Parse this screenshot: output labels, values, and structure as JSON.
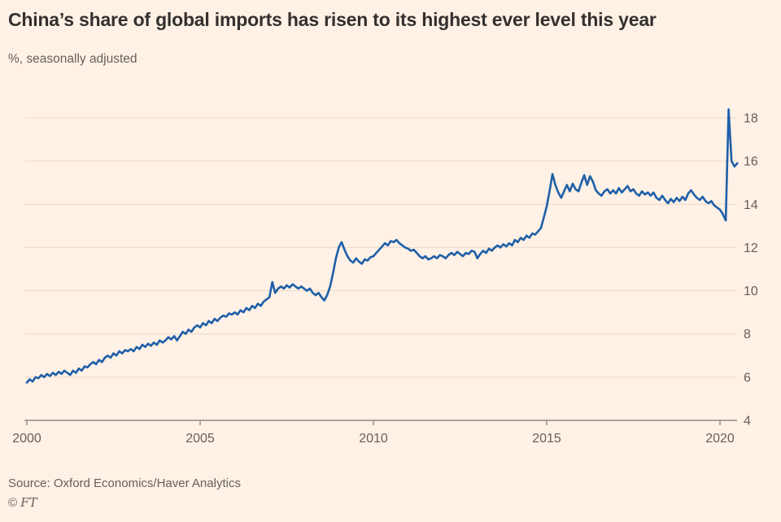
{
  "page": {
    "title": "China’s share of global imports has risen to its highest ever level this year",
    "subtitle": "%, seasonally adjusted",
    "source": "Source: Oxford Economics/Haver Analytics",
    "copyright_symbol": "©",
    "copyright_brand": "FT"
  },
  "colors": {
    "background": "#fff1e5",
    "line": "#1e5fa8",
    "grid": "#e9d9c7",
    "axis": "#8f8a86",
    "text_primary": "#33302e",
    "text_secondary": "#66605c"
  },
  "chart_data": {
    "type": "line",
    "title": "China’s share of global imports has risen to its highest ever level this year",
    "subtitle": "%, seasonally adjusted",
    "xlabel": "",
    "ylabel": "%, seasonally adjusted",
    "x_ticks": [
      2000,
      2005,
      2010,
      2015,
      2020
    ],
    "y_ticks": [
      4,
      6,
      8,
      10,
      12,
      14,
      16,
      18
    ],
    "xlim": [
      2000,
      2020.58
    ],
    "ylim": [
      4,
      18.8
    ],
    "grid": true,
    "legend_position": "none",
    "line_color": "#1e5fa8",
    "frequency": "monthly",
    "start": "2000-01",
    "end": "2020-07",
    "series": [
      {
        "name": "China share of global imports (%)",
        "values": [
          5.75,
          5.9,
          5.8,
          6.0,
          5.95,
          6.1,
          6.0,
          6.15,
          6.05,
          6.2,
          6.1,
          6.25,
          6.15,
          6.3,
          6.2,
          6.1,
          6.3,
          6.2,
          6.4,
          6.3,
          6.5,
          6.45,
          6.6,
          6.7,
          6.6,
          6.8,
          6.7,
          6.9,
          7.0,
          6.9,
          7.1,
          7.0,
          7.2,
          7.1,
          7.25,
          7.2,
          7.3,
          7.2,
          7.4,
          7.3,
          7.5,
          7.4,
          7.55,
          7.45,
          7.6,
          7.5,
          7.7,
          7.6,
          7.7,
          7.85,
          7.75,
          7.9,
          7.7,
          7.9,
          8.1,
          8.0,
          8.2,
          8.1,
          8.3,
          8.4,
          8.3,
          8.5,
          8.4,
          8.6,
          8.5,
          8.7,
          8.6,
          8.75,
          8.85,
          8.8,
          8.95,
          8.9,
          9.0,
          8.9,
          9.1,
          9.0,
          9.2,
          9.1,
          9.3,
          9.2,
          9.4,
          9.3,
          9.5,
          9.6,
          9.7,
          10.4,
          9.9,
          10.1,
          10.2,
          10.1,
          10.25,
          10.15,
          10.3,
          10.2,
          10.1,
          10.2,
          10.1,
          10.0,
          10.1,
          9.9,
          9.8,
          9.9,
          9.7,
          9.55,
          9.8,
          10.2,
          10.8,
          11.5,
          12.0,
          12.25,
          11.9,
          11.6,
          11.4,
          11.3,
          11.5,
          11.35,
          11.25,
          11.45,
          11.4,
          11.55,
          11.6,
          11.75,
          11.9,
          12.05,
          12.2,
          12.1,
          12.3,
          12.25,
          12.35,
          12.2,
          12.1,
          12.0,
          11.95,
          11.85,
          11.9,
          11.75,
          11.6,
          11.5,
          11.6,
          11.45,
          11.5,
          11.6,
          11.5,
          11.65,
          11.6,
          11.5,
          11.65,
          11.75,
          11.65,
          11.8,
          11.7,
          11.6,
          11.75,
          11.7,
          11.85,
          11.8,
          11.5,
          11.7,
          11.85,
          11.75,
          11.95,
          11.85,
          12.0,
          12.1,
          12.0,
          12.15,
          12.05,
          12.2,
          12.1,
          12.35,
          12.25,
          12.45,
          12.35,
          12.55,
          12.45,
          12.65,
          12.6,
          12.75,
          12.9,
          13.4,
          13.9,
          14.6,
          15.4,
          14.9,
          14.55,
          14.3,
          14.6,
          14.9,
          14.6,
          14.95,
          14.7,
          14.6,
          15.0,
          15.35,
          14.9,
          15.3,
          15.05,
          14.65,
          14.5,
          14.4,
          14.6,
          14.7,
          14.5,
          14.65,
          14.5,
          14.75,
          14.55,
          14.7,
          14.85,
          14.6,
          14.7,
          14.5,
          14.4,
          14.6,
          14.45,
          14.55,
          14.4,
          14.55,
          14.3,
          14.2,
          14.4,
          14.2,
          14.05,
          14.25,
          14.1,
          14.3,
          14.15,
          14.35,
          14.2,
          14.5,
          14.65,
          14.45,
          14.3,
          14.2,
          14.35,
          14.15,
          14.05,
          14.15,
          13.95,
          13.85,
          13.75,
          13.55,
          13.25,
          18.4,
          16.0,
          15.75,
          15.9
        ]
      }
    ]
  }
}
